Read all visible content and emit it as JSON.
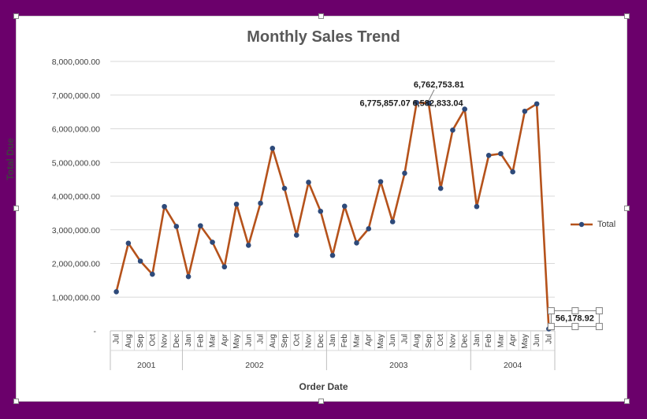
{
  "chart_data": {
    "type": "line",
    "title": "Monthly Sales Trend",
    "xlabel": "Order Date",
    "ylabel": "Total Due",
    "ylim": [
      0,
      8000000
    ],
    "grid": true,
    "legend_position": "right",
    "y_ticks": [
      "-",
      "1,000,000.00",
      "2,000,000.00",
      "3,000,000.00",
      "4,000,000.00",
      "5,000,000.00",
      "6,000,000.00",
      "7,000,000.00",
      "8,000,000.00"
    ],
    "x": [
      "Jul",
      "Aug",
      "Sep",
      "Oct",
      "Nov",
      "Dec",
      "Jan",
      "Feb",
      "Mar",
      "Apr",
      "May",
      "Jun",
      "Jul",
      "Aug",
      "Sep",
      "Oct",
      "Nov",
      "Dec",
      "Jan",
      "Feb",
      "Mar",
      "Apr",
      "May",
      "Jun",
      "Jul",
      "Aug",
      "Sep",
      "Oct",
      "Nov",
      "Dec",
      "Jan",
      "Feb",
      "Mar",
      "Apr",
      "May",
      "Jun",
      "Jul"
    ],
    "year_groups": [
      {
        "label": "2001",
        "count": 6
      },
      {
        "label": "2002",
        "count": 12
      },
      {
        "label": "2003",
        "count": 12
      },
      {
        "label": "2004",
        "count": 7
      }
    ],
    "series": [
      {
        "name": "Total",
        "color": "#b5521b",
        "marker_color": "#2e4a7a",
        "values": [
          1160000,
          2600000,
          2070000,
          1680000,
          3690000,
          3100000,
          1610000,
          3120000,
          2630000,
          1900000,
          3760000,
          2540000,
          3790000,
          5420000,
          4230000,
          2840000,
          4410000,
          3550000,
          2240000,
          3700000,
          2610000,
          3030000,
          4430000,
          3240000,
          4680000,
          6775857.07,
          6762753.81,
          4230000,
          5960000,
          6582833.04,
          3690000,
          5210000,
          5260000,
          4720000,
          6520000,
          6740000,
          56178.92
        ]
      }
    ],
    "data_labels": [
      {
        "index": 25,
        "text": "6,775,857.07"
      },
      {
        "index": 26,
        "text": "6,762,753.81"
      },
      {
        "index": 29,
        "text": "6,582,833.04"
      },
      {
        "index": 36,
        "text": "56,178.92"
      }
    ]
  }
}
